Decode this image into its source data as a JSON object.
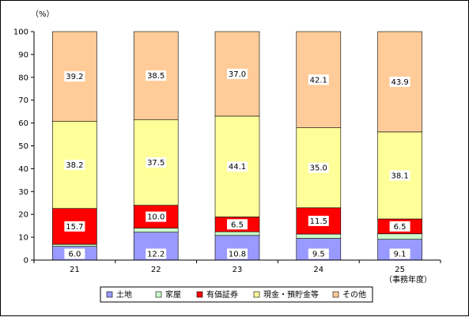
{
  "chart_data": {
    "type": "bar",
    "stacked": true,
    "percent": true,
    "y_unit": "（%）",
    "x_unit": "（事務年度）",
    "categories": [
      "21",
      "22",
      "23",
      "24",
      "25"
    ],
    "ylim": [
      0,
      100
    ],
    "yticks": [
      0,
      10,
      20,
      30,
      40,
      50,
      60,
      70,
      80,
      90,
      100
    ],
    "grid": false,
    "legend_position": "bottom",
    "series": [
      {
        "name": "土地",
        "values": [
          6.0,
          12.2,
          10.8,
          9.5,
          9.1
        ],
        "color": "#9999ff"
      },
      {
        "name": "家屋",
        "values": [
          0.9,
          1.8,
          1.6,
          1.9,
          2.4
        ],
        "color": "#ccffcc"
      },
      {
        "name": "有価証券",
        "values": [
          15.7,
          10.0,
          6.5,
          11.5,
          6.5
        ],
        "color": "#ff0000"
      },
      {
        "name": "現金・預貯金等",
        "values": [
          38.2,
          37.5,
          44.1,
          35.0,
          38.1
        ],
        "color": "#ffff99"
      },
      {
        "name": "その他",
        "values": [
          39.2,
          38.5,
          37.0,
          42.1,
          43.9
        ],
        "color": "#ffcc99"
      }
    ]
  }
}
